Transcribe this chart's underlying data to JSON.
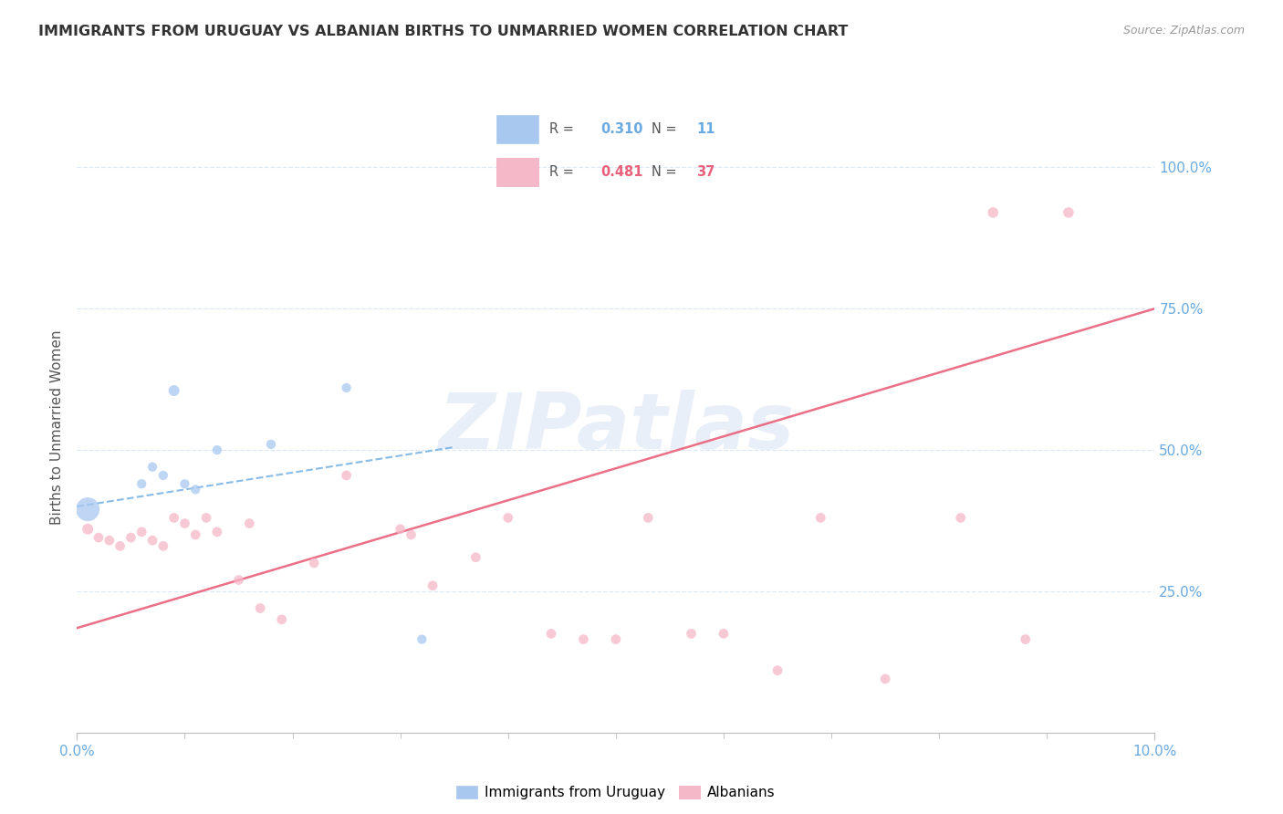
{
  "title": "IMMIGRANTS FROM URUGUAY VS ALBANIAN BIRTHS TO UNMARRIED WOMEN CORRELATION CHART",
  "source": "Source: ZipAtlas.com",
  "ylabel": "Births to Unmarried Women",
  "watermark": "ZIPatlas",
  "xlim": [
    0.0,
    0.1
  ],
  "ylim": [
    0.0,
    1.08
  ],
  "ytick_labels": [
    "25.0%",
    "50.0%",
    "75.0%",
    "100.0%"
  ],
  "ytick_positions": [
    0.25,
    0.5,
    0.75,
    1.0
  ],
  "legend_blue_R": "0.310",
  "legend_blue_N": "11",
  "legend_pink_R": "0.481",
  "legend_pink_N": "37",
  "blue_color": "#a8c8f0",
  "pink_color": "#f5b8c8",
  "blue_line_color": "#6aaae0",
  "pink_line_color": "#e8607a",
  "ytick_color": "#6aaae0",
  "xtick_color": "#6aaae0",
  "grid_color": "#dce8f5",
  "background_color": "#ffffff",
  "blue_scatter_x": [
    0.001,
    0.006,
    0.007,
    0.008,
    0.009,
    0.01,
    0.011,
    0.013,
    0.018,
    0.025,
    0.032
  ],
  "blue_scatter_y": [
    0.395,
    0.44,
    0.47,
    0.455,
    0.605,
    0.44,
    0.43,
    0.5,
    0.51,
    0.61,
    0.165
  ],
  "blue_sizes": [
    350,
    55,
    55,
    55,
    75,
    55,
    55,
    55,
    55,
    55,
    55
  ],
  "pink_scatter_x": [
    0.001,
    0.002,
    0.003,
    0.004,
    0.005,
    0.006,
    0.007,
    0.008,
    0.009,
    0.01,
    0.011,
    0.012,
    0.013,
    0.015,
    0.016,
    0.017,
    0.019,
    0.022,
    0.025,
    0.03,
    0.031,
    0.033,
    0.037,
    0.04,
    0.044,
    0.047,
    0.05,
    0.053,
    0.057,
    0.06,
    0.065,
    0.069,
    0.075,
    0.082,
    0.085,
    0.088,
    0.092
  ],
  "pink_scatter_y": [
    0.36,
    0.345,
    0.34,
    0.33,
    0.345,
    0.355,
    0.34,
    0.33,
    0.38,
    0.37,
    0.35,
    0.38,
    0.355,
    0.27,
    0.37,
    0.22,
    0.2,
    0.3,
    0.455,
    0.36,
    0.35,
    0.26,
    0.31,
    0.38,
    0.175,
    0.165,
    0.165,
    0.38,
    0.175,
    0.175,
    0.11,
    0.38,
    0.095,
    0.38,
    0.92,
    0.165,
    0.92
  ],
  "pink_sizes": [
    75,
    60,
    60,
    60,
    60,
    60,
    60,
    60,
    60,
    60,
    60,
    60,
    60,
    60,
    60,
    60,
    60,
    60,
    60,
    60,
    60,
    60,
    60,
    60,
    60,
    60,
    60,
    60,
    60,
    60,
    60,
    60,
    60,
    60,
    70,
    60,
    70
  ],
  "blue_trend_x": [
    0.0,
    0.035
  ],
  "blue_trend_y": [
    0.4,
    0.505
  ],
  "pink_trend_x": [
    0.0,
    0.1
  ],
  "pink_trend_y": [
    0.185,
    0.75
  ]
}
